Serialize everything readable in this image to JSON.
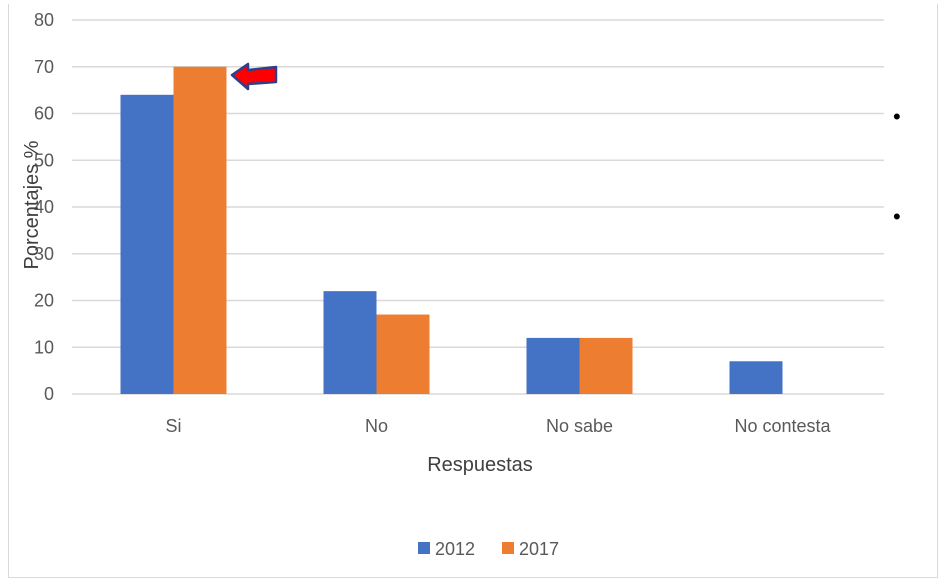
{
  "chart_data": {
    "type": "bar",
    "categories": [
      "Si",
      "No",
      "No sabe",
      "No contesta"
    ],
    "series": [
      {
        "name": "2012",
        "values": [
          64,
          22,
          12,
          7
        ],
        "color": "#4472C4"
      },
      {
        "name": "2017",
        "values": [
          70,
          17,
          12,
          0
        ],
        "color": "#ED7D31"
      }
    ],
    "xlabel": "Respuestas",
    "ylabel": "Porcentajes %",
    "ylim": [
      0,
      80
    ],
    "yticks": [
      0,
      10,
      20,
      30,
      40,
      50,
      60,
      70,
      80
    ],
    "grid": true,
    "legend": "bottom",
    "annotation": {
      "type": "arrow",
      "target": "Si-2017",
      "color": "#FF0000"
    }
  },
  "bullets": [
    "•",
    "•"
  ]
}
